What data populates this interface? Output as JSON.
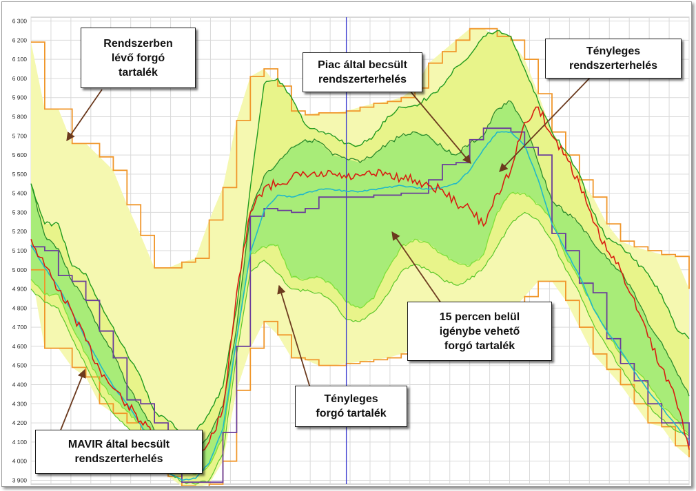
{
  "chart_data": {
    "type": "line",
    "title": "",
    "xlabel": "",
    "ylabel": "",
    "ylim": [
      3880,
      6320
    ],
    "yticks": [
      3900,
      4000,
      4100,
      4200,
      4300,
      4400,
      4500,
      4600,
      4700,
      4800,
      4900,
      5000,
      5100,
      5200,
      5300,
      5400,
      5500,
      5600,
      5700,
      5800,
      5900,
      6000,
      6100,
      6200,
      6300
    ],
    "ytick_labels": [
      "3 900",
      "4 000",
      "4 100",
      "4 200",
      "4 300",
      "4 400",
      "4 500",
      "4 600",
      "4 700",
      "4 800",
      "4 900",
      "5 000",
      "5 100",
      "5 200",
      "5 300",
      "5 400",
      "5 500",
      "5 600",
      "5 700",
      "5 800",
      "5 900",
      "6 000",
      "6 100",
      "6 200",
      "6 300"
    ],
    "x": [
      0,
      0.5,
      1,
      1.5,
      2,
      2.5,
      3,
      3.5,
      4,
      4.5,
      5,
      5.5,
      6,
      6.5,
      7,
      7.5,
      8,
      8.5,
      9,
      9.5,
      10,
      10.5,
      11,
      11.5,
      12,
      12.5,
      13,
      13.5,
      14,
      14.5,
      15,
      15.5,
      16,
      16.5,
      17,
      17.5,
      18,
      18.5,
      19,
      19.5,
      20,
      20.5,
      21,
      21.5,
      22,
      22.5,
      23,
      23.5,
      24
    ],
    "xlim": [
      0,
      24
    ],
    "x_grid_count": 33,
    "current_time_x": 11.5,
    "grid": true,
    "series": [
      {
        "role": "upper-bound",
        "color": "#f0962a",
        "values": [
          6190,
          5840,
          5840,
          5660,
          5660,
          5590,
          5520,
          5340,
          5180,
          5010,
          5010,
          5040,
          5060,
          5260,
          5430,
          5780,
          6010,
          6050,
          5960,
          5830,
          5810,
          5820,
          5820,
          5830,
          5850,
          5870,
          5880,
          5900,
          5950,
          6080,
          6140,
          6200,
          6260,
          6260,
          6220,
          6200,
          6100,
          5920,
          5720,
          5600,
          5470,
          5380,
          5240,
          5150,
          5120,
          5100,
          5080,
          5070,
          4900
        ]
      },
      {
        "role": "lower-bound",
        "color": "#f0962a",
        "values": [
          5000,
          4590,
          4590,
          4490,
          4440,
          4300,
          4250,
          4200,
          4120,
          4010,
          3920,
          3870,
          3860,
          3880,
          4000,
          4370,
          4590,
          4730,
          4660,
          4540,
          4530,
          4500,
          4500,
          4510,
          4520,
          4530,
          4540,
          4560,
          4590,
          4650,
          4700,
          4720,
          4740,
          4740,
          4750,
          4780,
          4860,
          4940,
          4940,
          4840,
          4700,
          4560,
          4480,
          4400,
          4300,
          4200,
          4180,
          4080,
          4020
        ]
      },
      {
        "role": "upper-band",
        "color": "#1f9a1f",
        "values": [
          5450,
          5240,
          5240,
          5020,
          4980,
          4830,
          4700,
          4560,
          4440,
          4260,
          4210,
          4150,
          4150,
          4250,
          4390,
          4800,
          5430,
          5970,
          6000,
          5900,
          5760,
          5720,
          5700,
          5660,
          5650,
          5700,
          5800,
          5850,
          5860,
          5900,
          5960,
          6060,
          6120,
          6220,
          6250,
          6220,
          6050,
          5880,
          5720,
          5620,
          5500,
          5300,
          5160,
          5130,
          5050,
          4980,
          4870,
          4700,
          4640
        ]
      },
      {
        "role": "mid-band",
        "color": "#2c8a2c",
        "values": [
          5450,
          5180,
          5110,
          4940,
          4840,
          4680,
          4560,
          4400,
          4280,
          4160,
          4120,
          4080,
          4050,
          4140,
          4290,
          4700,
          5300,
          5490,
          5560,
          5640,
          5680,
          5670,
          5600,
          5580,
          5560,
          5600,
          5660,
          5700,
          5720,
          5700,
          5640,
          5600,
          5660,
          5700,
          5840,
          5880,
          5760,
          5560,
          5360,
          5300,
          5240,
          5140,
          5060,
          4990,
          4880,
          4720,
          4620,
          4480,
          4340
        ]
      },
      {
        "role": "reserve-15min",
        "color": "#7fe03a",
        "values": [
          4950,
          4870,
          4870,
          4700,
          4560,
          4420,
          4330,
          4260,
          4190,
          4090,
          4050,
          3970,
          3930,
          3980,
          4120,
          4640,
          5080,
          5120,
          5130,
          4960,
          4950,
          4960,
          4920,
          4830,
          4800,
          4850,
          5000,
          5120,
          5160,
          5140,
          5080,
          5040,
          5020,
          5080,
          5300,
          5400,
          5400,
          5340,
          5260,
          5070,
          4950,
          4800,
          4680,
          4560,
          4480,
          4410,
          4300,
          4220,
          4140
        ]
      },
      {
        "role": "actual-reserve-boundary",
        "color": "#5ac72a",
        "values": [
          4900,
          4830,
          4800,
          4640,
          4500,
          4360,
          4250,
          4180,
          4110,
          3990,
          3950,
          3890,
          3880,
          3900,
          4040,
          4560,
          4990,
          5050,
          4980,
          4900,
          4890,
          4880,
          4830,
          4740,
          4730,
          4780,
          4870,
          4990,
          5030,
          5000,
          4950,
          4920,
          4950,
          5010,
          5120,
          5240,
          5300,
          5260,
          5150,
          5000,
          4880,
          4720,
          4600,
          4490,
          4380,
          4290,
          4220,
          4160,
          4130
        ]
      },
      {
        "role": "MAVIR-forecast",
        "color": "#21b8c8",
        "values": [
          5130,
          5010,
          4910,
          4780,
          4640,
          4510,
          4390,
          4300,
          4190,
          4050,
          3940,
          3900,
          3910,
          3990,
          4170,
          4640,
          5090,
          5310,
          5390,
          5380,
          5400,
          5420,
          5420,
          5410,
          5410,
          5420,
          5430,
          5440,
          5430,
          5420,
          5430,
          5450,
          5520,
          5630,
          5720,
          5720,
          5650,
          5470,
          5240,
          5100,
          4970,
          4800,
          4680,
          4580,
          4470,
          4370,
          4280,
          4190,
          4110
        ]
      },
      {
        "role": "market-forecast",
        "color": "#6a3c9a",
        "values": [
          5120,
          5100,
          4970,
          4940,
          4840,
          4680,
          4540,
          4320,
          4300,
          4200,
          3960,
          3890,
          3890,
          3890,
          4150,
          4600,
          5280,
          5320,
          5310,
          5300,
          5320,
          5380,
          5380,
          5380,
          5380,
          5390,
          5390,
          5400,
          5400,
          5470,
          5550,
          5560,
          5680,
          5740,
          5740,
          5720,
          5640,
          5600,
          5190,
          5100,
          4930,
          4880,
          4640,
          4510,
          4420,
          4300,
          4200,
          4200,
          4080
        ]
      },
      {
        "role": "actual-load",
        "color": "#d81c10",
        "values": [
          5160,
          5020,
          4890,
          4780,
          4630,
          4480,
          4380,
          4300,
          4210,
          4130,
          4050,
          3950,
          3980,
          4100,
          4270,
          4880,
          5300,
          5430,
          5450,
          5480,
          5500,
          5490,
          5500,
          5480,
          5490,
          5500,
          5500,
          5480,
          5470,
          5440,
          5420,
          5350,
          5320,
          5230,
          5400,
          5520,
          5770,
          5850,
          5700,
          5600,
          5450,
          5250,
          5100,
          5000,
          4850,
          4650,
          4490,
          4330,
          4060
        ]
      }
    ]
  },
  "annotations": {
    "spinning_reserve": "Rendszerben\nlévő forgó\ntartalék",
    "market_forecast": "Piac által becsült\nrendszerterhelés",
    "actual_load": "Tényleges\nrendszerterhelés",
    "reserve_15min": "15 percen belül\nigénybe vehető\nforgó tartalék",
    "actual_reserve": "Tényleges\nforgó tartalék",
    "mavir_forecast": "MAVIR által becsült\nrendszerterhelés"
  },
  "colors": {
    "outer_band_fill": "#f5f8b0",
    "outer_band_fill_secondary": "#e8f48a",
    "inner_band_fill": "#a8ec78",
    "arrow": "#6b3a1e",
    "grid": "#d9d9d9",
    "current_time_line": "#3b3bd0"
  }
}
